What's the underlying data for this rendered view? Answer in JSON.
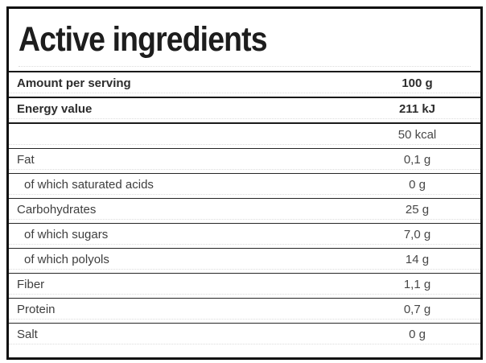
{
  "header": {
    "title": "Active ingredients"
  },
  "table": {
    "rows": [
      {
        "label": "Amount per serving",
        "value": "100 g",
        "bold": true,
        "indent": false
      },
      {
        "label": "Energy value",
        "value": "211 kJ",
        "bold": true,
        "indent": false
      },
      {
        "label": "",
        "value": "50 kcal",
        "bold": false,
        "indent": false
      },
      {
        "label": "Fat",
        "value": "0,1 g",
        "bold": false,
        "indent": false
      },
      {
        "label": "of which saturated acids",
        "value": "0 g",
        "bold": false,
        "indent": true
      },
      {
        "label": "Carbohydrates",
        "value": "25 g",
        "bold": false,
        "indent": false
      },
      {
        "label": "of which sugars",
        "value": "7,0 g",
        "bold": false,
        "indent": true
      },
      {
        "label": "of which polyols",
        "value": "14 g",
        "bold": false,
        "indent": true
      },
      {
        "label": "Fiber",
        "value": "1,1 g",
        "bold": false,
        "indent": false
      },
      {
        "label": "Protein",
        "value": "0,7 g",
        "bold": false,
        "indent": false
      },
      {
        "label": "Salt",
        "value": "0 g",
        "bold": false,
        "indent": false
      }
    ]
  },
  "colors": {
    "frame": "#101010",
    "row_divider": "#262626",
    "dotted_divider": "#dcdcdc",
    "title_text": "#1d1d1d",
    "bold_text": "#2c2c2c",
    "label_text": "#3e3e3e",
    "value_text": "#474747",
    "background": "#ffffff"
  }
}
